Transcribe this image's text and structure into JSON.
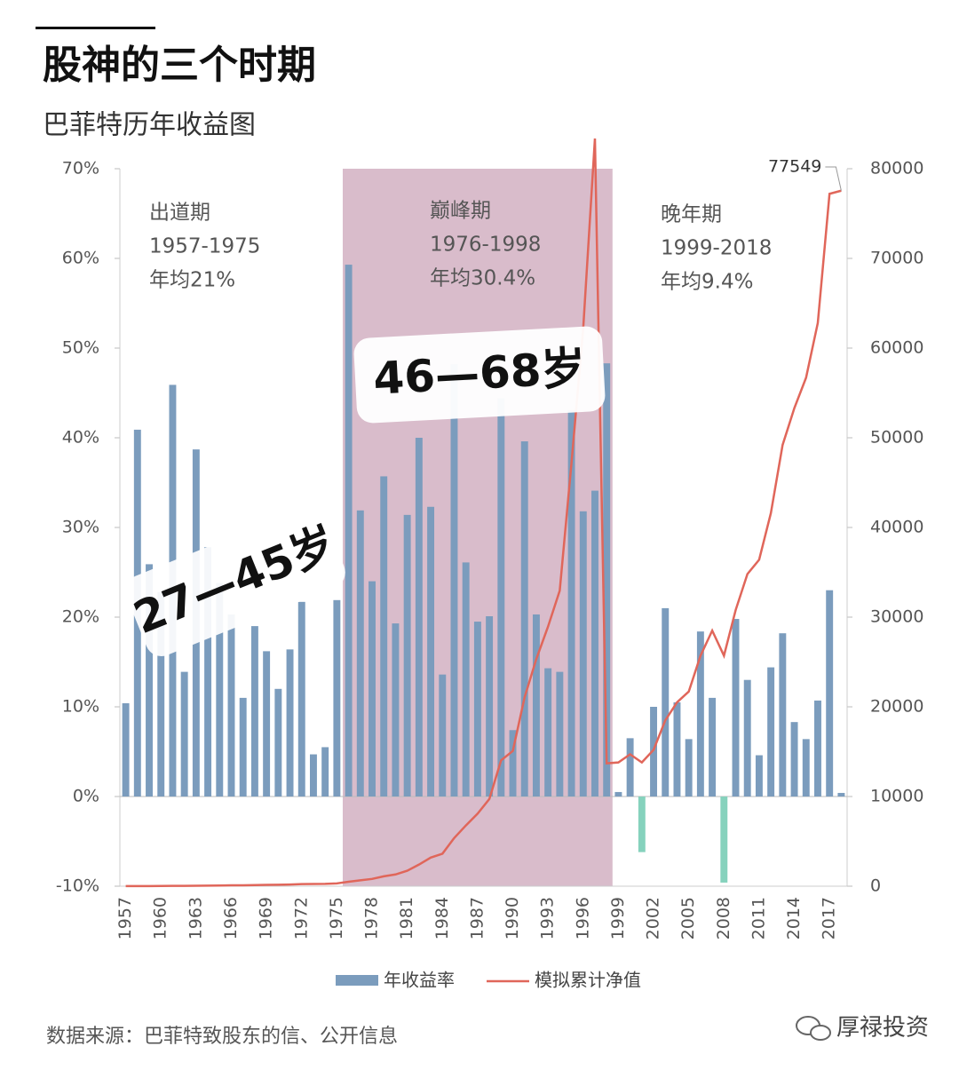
{
  "chart_data": {
    "type": "bar_line",
    "title": "股神的三个时期",
    "subtitle": "巴菲特历年收益图",
    "categories": [
      1957,
      null,
      null,
      1960,
      null,
      null,
      1963,
      null,
      null,
      1966,
      null,
      null,
      1969,
      null,
      null,
      1972,
      null,
      null,
      1975,
      null,
      null,
      1978,
      null,
      null,
      1981,
      null,
      null,
      1984,
      null,
      null,
      1987,
      null,
      null,
      1990,
      null,
      null,
      1993,
      null,
      null,
      1996,
      null,
      null,
      1999,
      null,
      null,
      2002,
      null,
      null,
      2005,
      null,
      null,
      2008,
      null,
      null,
      2011,
      null,
      null,
      2014,
      null,
      null,
      2017,
      null
    ],
    "series": [
      {
        "name": "年收益率",
        "color": "#7b9cbd",
        "negative_color": "#86d2bd",
        "axis": "y",
        "values": [
          10.4,
          40.9,
          25.9,
          22.8,
          45.9,
          13.9,
          38.7,
          27.8,
          23.8,
          20.3,
          11.0,
          19.0,
          16.2,
          12.0,
          16.4,
          21.7,
          4.7,
          5.5,
          21.9,
          59.3,
          31.9,
          24.0,
          35.7,
          19.3,
          31.4,
          40.0,
          32.3,
          13.6,
          48.2,
          26.1,
          19.5,
          20.1,
          44.4,
          7.4,
          39.6,
          20.3,
          14.3,
          13.9,
          43.1,
          31.8,
          34.1,
          48.3,
          0.5,
          6.5,
          -6.2,
          10.0,
          21.0,
          10.5,
          6.4,
          18.4,
          11.0,
          -9.6,
          19.8,
          13.0,
          4.6,
          14.4,
          18.2,
          8.3,
          6.4,
          10.7,
          23.0,
          0.4
        ]
      },
      {
        "name": "模拟累计净值",
        "color": "#e0665a",
        "axis": "y2",
        "values": [
          10,
          14,
          18,
          22,
          32,
          36,
          50,
          64,
          79,
          95,
          105,
          125,
          146,
          163,
          190,
          231,
          242,
          255,
          311,
          495,
          653,
          810,
          1099,
          1311,
          1723,
          2412,
          3191,
          3625,
          5372,
          6774,
          8094,
          9721,
          14037,
          15076,
          21046,
          25318,
          28938,
          32960,
          47168,
          62168,
          83368,
          13700,
          13800,
          14700,
          13800,
          15200,
          18500,
          20500,
          21700,
          25700,
          28500,
          25700,
          30800,
          34800,
          36400,
          41600,
          49200,
          53300,
          56700,
          62800,
          77200,
          77549
        ]
      }
    ],
    "ylim": [
      -10,
      70
    ],
    "yticks": [
      {
        "value": -10,
        "label": "-10%"
      },
      {
        "value": 0,
        "label": "0%"
      },
      {
        "value": 10,
        "label": "10%"
      },
      {
        "value": 20,
        "label": "20%"
      },
      {
        "value": 30,
        "label": "30%"
      },
      {
        "value": 40,
        "label": "40%"
      },
      {
        "value": 50,
        "label": "50%"
      },
      {
        "value": 60,
        "label": "60%"
      },
      {
        "value": 70,
        "label": "70%"
      }
    ],
    "y2lim": [
      0,
      80000
    ],
    "y2ticks": [
      0,
      10000,
      20000,
      30000,
      40000,
      50000,
      60000,
      70000,
      80000
    ],
    "highlight_years": [
      1976,
      1998
    ],
    "periods": [
      {
        "name": "出道期",
        "years": "1957-1975",
        "average": "年均21%"
      },
      {
        "name": "巅峰期",
        "years": "1976-1998",
        "average": "年均30.4%"
      },
      {
        "name": "晚年期",
        "years": "1999-2018",
        "average": "年均9.4%"
      }
    ],
    "age_labels": [
      "27—45岁",
      "46—68岁"
    ],
    "source": "数据来源：巴菲特致股东的信、公开信息",
    "watermark": "厚禄投资"
  }
}
